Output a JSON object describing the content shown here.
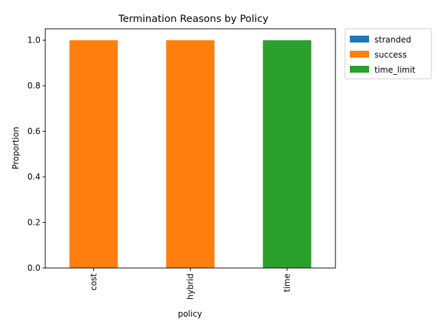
{
  "chart_data": {
    "type": "bar",
    "stacked": true,
    "title": "Termination Reasons by Policy",
    "xlabel": "policy",
    "ylabel": "Proportion",
    "categories": [
      "cost",
      "hybrid",
      "time"
    ],
    "series": [
      {
        "name": "stranded",
        "color": "#1f77b4",
        "values": [
          0.0,
          0.0,
          0.0
        ]
      },
      {
        "name": "success",
        "color": "#ff7f0e",
        "values": [
          1.0,
          1.0,
          0.0
        ]
      },
      {
        "name": "time_limit",
        "color": "#2ca02c",
        "values": [
          0.0,
          0.0,
          1.0
        ]
      }
    ],
    "ylim": [
      0,
      1.05
    ],
    "yticks": [
      "0.0",
      "0.2",
      "0.4",
      "0.6",
      "0.8",
      "1.0"
    ],
    "legend_position": "outside-top-right",
    "grid": false
  }
}
